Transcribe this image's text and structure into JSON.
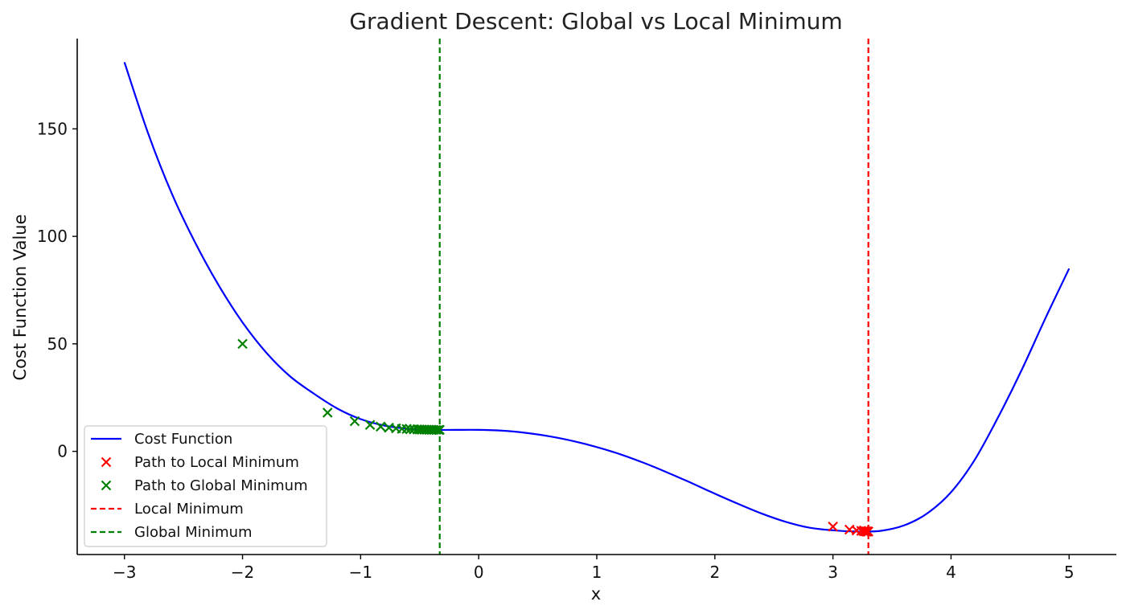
{
  "chart_data": {
    "type": "line",
    "title": "Gradient Descent: Global vs Local Minimum",
    "xlabel": "x",
    "ylabel": "Cost Function Value",
    "xlim": [
      -3.4,
      5.4
    ],
    "ylim": [
      -48,
      192
    ],
    "xticks": [
      -3,
      -2,
      -1,
      0,
      1,
      2,
      3,
      4,
      5
    ],
    "xtick_labels": [
      "−3",
      "−2",
      "−1",
      "0",
      "1",
      "2",
      "3",
      "4",
      "5"
    ],
    "yticks": [
      0,
      50,
      100,
      150
    ],
    "ytick_labels": [
      "0",
      "50",
      "100",
      "150"
    ],
    "grid": false,
    "legend_position": "lower-left",
    "cost_function": {
      "name": "Cost Function",
      "color": "#0000ff",
      "x": [
        -3.0,
        -2.8,
        -2.6,
        -2.4,
        -2.2,
        -2.0,
        -1.8,
        -1.6,
        -1.4,
        -1.2,
        -1.0,
        -0.8,
        -0.6,
        -0.4,
        -0.2,
        0.0,
        0.2,
        0.4,
        0.6,
        0.8,
        1.0,
        1.2,
        1.4,
        1.6,
        1.8,
        2.0,
        2.2,
        2.4,
        2.6,
        2.8,
        3.0,
        3.2,
        3.4,
        3.6,
        3.8,
        4.0,
        4.2,
        4.4,
        4.6,
        4.8,
        5.0
      ],
      "y": [
        181,
        148,
        120,
        97,
        77,
        60,
        46,
        35,
        27,
        20,
        15,
        12,
        10.5,
        10,
        10,
        10,
        9.6,
        8.6,
        7.0,
        4.8,
        2.0,
        -1.4,
        -5.4,
        -9.9,
        -14.7,
        -19.7,
        -24.5,
        -29,
        -32.8,
        -35.5,
        -36.7,
        -37.3,
        -37,
        -34.5,
        -28.8,
        -19,
        -4,
        16,
        38,
        62,
        85
      ]
    },
    "path_to_local": {
      "name": "Path to Local Minimum",
      "color": "#ff0000",
      "x": [
        3.0,
        3.14,
        3.2,
        3.24,
        3.26,
        3.27,
        3.28,
        3.285,
        3.29,
        3.295,
        3.3
      ],
      "y": [
        -35,
        -36.4,
        -36.8,
        -37.0,
        -37.1,
        -37.2,
        -37.25,
        -37.3,
        -37.3,
        -37.3,
        -37.3
      ]
    },
    "path_to_global": {
      "name": "Path to Global Minimum",
      "color": "#008000",
      "x": [
        -2.0,
        -1.28,
        -1.05,
        -0.92,
        -0.83,
        -0.76,
        -0.7,
        -0.65,
        -0.61,
        -0.58,
        -0.55,
        -0.52,
        -0.5,
        -0.48,
        -0.46,
        -0.44,
        -0.42,
        -0.4,
        -0.38,
        -0.36,
        -0.34,
        -0.33
      ],
      "y": [
        50,
        18,
        14,
        12.3,
        11.5,
        11,
        10.7,
        10.5,
        10.4,
        10.3,
        10.25,
        10.2,
        10.15,
        10.1,
        10.1,
        10.05,
        10.05,
        10,
        10,
        10,
        10,
        10
      ]
    },
    "local_minimum": {
      "name": "Local Minimum",
      "x": 3.3,
      "color": "#ff0000"
    },
    "global_minimum": {
      "name": "Global Minimum",
      "x": -0.33,
      "color": "#008000"
    }
  }
}
